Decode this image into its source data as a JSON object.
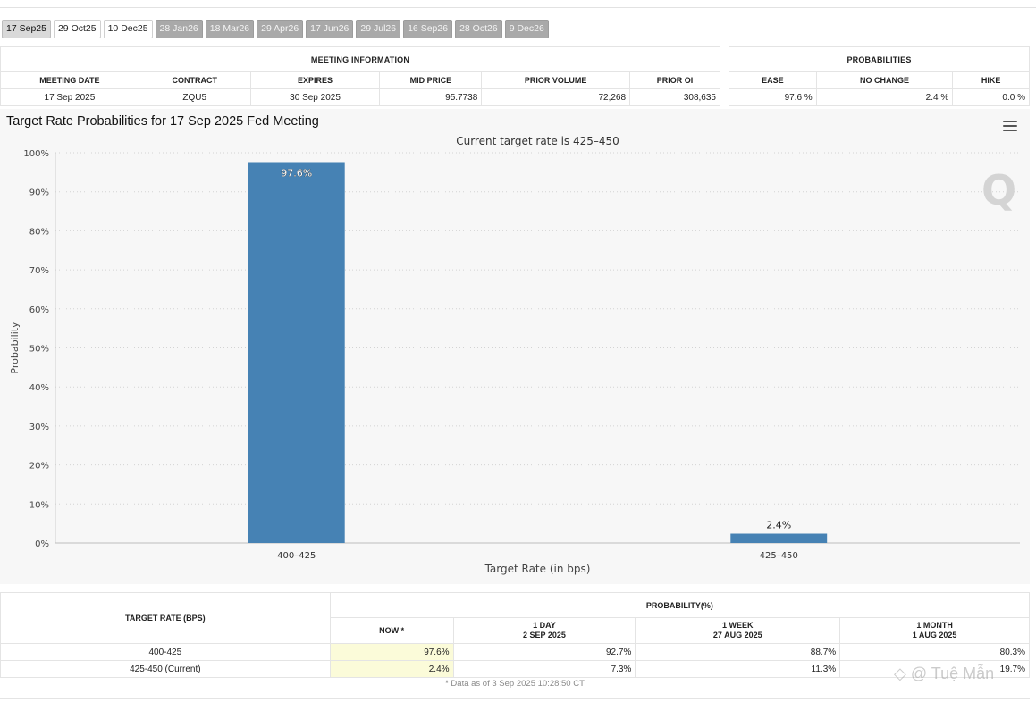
{
  "tabs": [
    {
      "label": "17 Sep25",
      "state": "active"
    },
    {
      "label": "29 Oct25",
      "state": "open"
    },
    {
      "label": "10 Dec25",
      "state": "open"
    },
    {
      "label": "28 Jan26",
      "state": "muted"
    },
    {
      "label": "18 Mar26",
      "state": "muted"
    },
    {
      "label": "29 Apr26",
      "state": "muted"
    },
    {
      "label": "17 Jun26",
      "state": "muted"
    },
    {
      "label": "29 Jul26",
      "state": "muted"
    },
    {
      "label": "16 Sep26",
      "state": "muted"
    },
    {
      "label": "28 Oct26",
      "state": "muted"
    },
    {
      "label": "9 Dec26",
      "state": "muted"
    }
  ],
  "meeting_info": {
    "group_title": "MEETING INFORMATION",
    "headers": [
      "MEETING DATE",
      "CONTRACT",
      "EXPIRES",
      "MID PRICE",
      "PRIOR VOLUME",
      "PRIOR OI"
    ],
    "row": [
      "17 Sep 2025",
      "ZQU5",
      "30 Sep 2025",
      "95.7738",
      "72,268",
      "308,635"
    ]
  },
  "probabilities": {
    "group_title": "PROBABILITIES",
    "headers": [
      "EASE",
      "NO CHANGE",
      "HIKE"
    ],
    "row": [
      "97.6 %",
      "2.4 %",
      "0.0 %"
    ]
  },
  "chart_data": {
    "type": "bar",
    "title": "Target Rate Probabilities for 17 Sep 2025 Fed Meeting",
    "subtitle": "Current target rate is 425–450",
    "categories": [
      "400–425",
      "425–450"
    ],
    "values": [
      97.6,
      2.4
    ],
    "data_labels": [
      "97.6%",
      "2.4%"
    ],
    "xlabel": "Target Rate (in bps)",
    "ylabel": "Probability",
    "ylim": [
      0,
      100
    ],
    "yticks": [
      0,
      10,
      20,
      30,
      40,
      50,
      60,
      70,
      80,
      90,
      100
    ],
    "ytick_labels": [
      "0%",
      "10%",
      "20%",
      "30%",
      "40%",
      "50%",
      "60%",
      "70%",
      "80%",
      "90%",
      "100%"
    ],
    "grid": true,
    "legend": "none",
    "bar_color": "#4682b4",
    "background_color": "#f7f7f7"
  },
  "chart_ui": {
    "menu_icon": "hamburger-menu-icon",
    "logo_letter": "Q"
  },
  "history": {
    "col_header": "TARGET RATE (BPS)",
    "group_title": "PROBABILITY(%)",
    "columns": [
      {
        "line1": "NOW *",
        "line2": ""
      },
      {
        "line1": "1 DAY",
        "line2": "2 SEP 2025"
      },
      {
        "line1": "1 WEEK",
        "line2": "27 AUG 2025"
      },
      {
        "line1": "1 MONTH",
        "line2": "1 AUG 2025"
      }
    ],
    "rows": [
      {
        "rate": "400-425",
        "values": [
          "97.6%",
          "92.7%",
          "88.7%",
          "80.3%"
        ]
      },
      {
        "rate": "425-450 (Current)",
        "values": [
          "2.4%",
          "7.3%",
          "11.3%",
          "19.7%"
        ]
      }
    ],
    "footnote": "* Data as of 3 Sep 2025 10:28:50 CT"
  },
  "watermark": "◇ @ Tuệ Mẫn"
}
